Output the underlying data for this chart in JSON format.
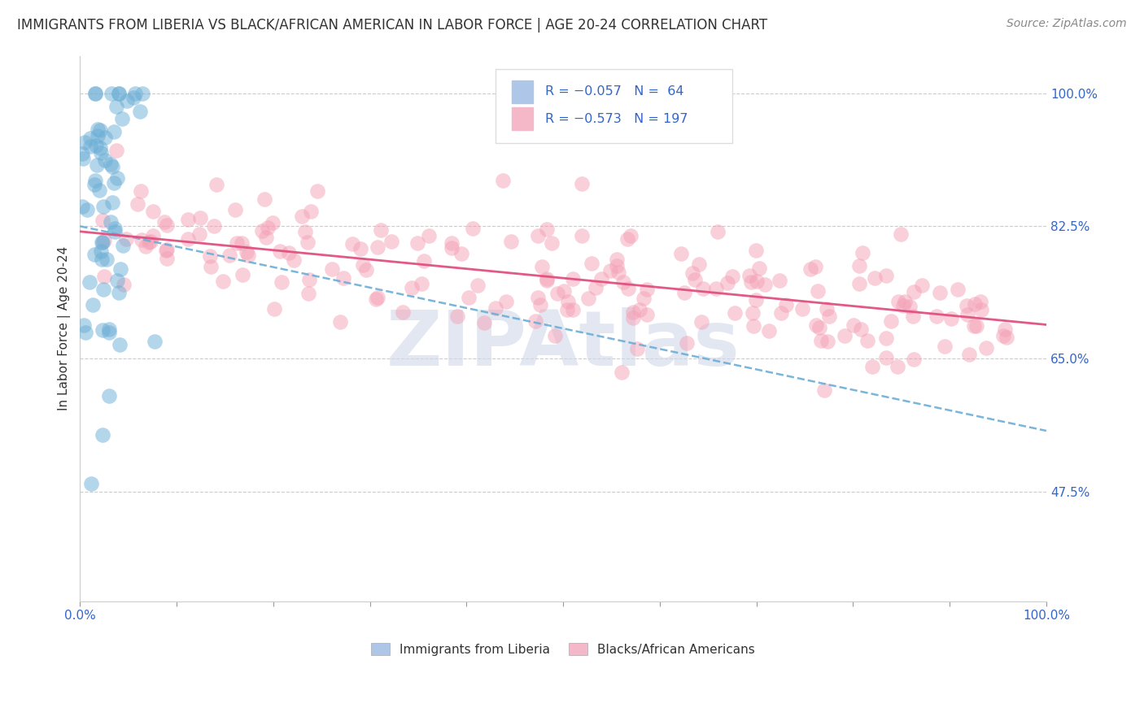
{
  "title": "IMMIGRANTS FROM LIBERIA VS BLACK/AFRICAN AMERICAN IN LABOR FORCE | AGE 20-24 CORRELATION CHART",
  "source": "Source: ZipAtlas.com",
  "ylabel": "In Labor Force | Age 20-24",
  "xlim": [
    0.0,
    1.0
  ],
  "ylim": [
    0.33,
    1.05
  ],
  "yticks": [
    0.475,
    0.65,
    0.825,
    1.0
  ],
  "ytick_labels": [
    "47.5%",
    "65.0%",
    "82.5%",
    "100.0%"
  ],
  "blue_R": -0.057,
  "blue_N": 64,
  "pink_R": -0.573,
  "pink_N": 197,
  "blue_color": "#6baed6",
  "pink_color": "#f4a0b5",
  "legend1_label": "Immigrants from Liberia",
  "legend2_label": "Blacks/African Americans",
  "watermark": "ZIPAtlas",
  "background_color": "#ffffff",
  "title_fontsize": 12,
  "blue_trend_start_y": 0.825,
  "blue_trend_end_y": 0.555,
  "pink_trend_start_y": 0.818,
  "pink_trend_end_y": 0.695
}
